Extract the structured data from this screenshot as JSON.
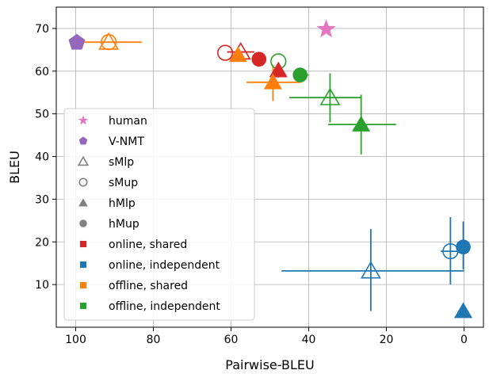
{
  "chart_data": {
    "type": "scatter",
    "xlabel": "Pairwise-BLEU",
    "ylabel": "BLEU",
    "x_reversed": true,
    "xlim": [
      105,
      -5
    ],
    "ylim": [
      0,
      75
    ],
    "xticks": [
      100,
      80,
      60,
      40,
      20,
      0
    ],
    "yticks": [
      10,
      20,
      30,
      40,
      50,
      60,
      70
    ],
    "grid": true,
    "legend_position": "lower-left",
    "colors": {
      "human": "#e377c2",
      "vnmt": "#9467bd",
      "online_shared": "#d62728",
      "online_independent": "#1f77b4",
      "offline_shared": "#ff7f0e",
      "offline_independent": "#2ca02c",
      "marker_key": "#808080"
    },
    "legend": [
      {
        "label": "human",
        "marker": "star",
        "color": "#e377c2"
      },
      {
        "label": "V-NMT",
        "marker": "pentagon",
        "color": "#9467bd"
      },
      {
        "label": "sMlp",
        "marker": "triangle-open",
        "color": "#808080"
      },
      {
        "label": "sMup",
        "marker": "circle-open",
        "color": "#808080"
      },
      {
        "label": "hMlp",
        "marker": "triangle",
        "color": "#808080"
      },
      {
        "label": "hMup",
        "marker": "circle",
        "color": "#808080"
      },
      {
        "label": "online, shared",
        "marker": "square",
        "color": "#d62728"
      },
      {
        "label": "online, independent",
        "marker": "square",
        "color": "#1f77b4"
      },
      {
        "label": "offline, shared",
        "marker": "square",
        "color": "#ff7f0e"
      },
      {
        "label": "offline, independent",
        "marker": "square",
        "color": "#2ca02c"
      }
    ],
    "points": [
      {
        "group": "human",
        "marker": "star",
        "color": "#e377c2",
        "x": 35.5,
        "y": 69.8
      },
      {
        "group": "V-NMT",
        "marker": "pentagon",
        "color": "#9467bd",
        "x": 99.7,
        "y": 66.7
      },
      {
        "group": "offline, shared",
        "marker": "triangle-open",
        "color": "#ff7f0e",
        "x": 91.5,
        "y": 66.8,
        "xerr": [
          83,
          99
        ]
      },
      {
        "group": "offline, shared",
        "marker": "circle-open",
        "color": "#ff7f0e",
        "x": 91.5,
        "y": 66.8
      },
      {
        "group": "online, shared",
        "marker": "circle-open",
        "color": "#d62728",
        "x": 61.5,
        "y": 64.3
      },
      {
        "group": "online, shared",
        "marker": "triangle-open",
        "color": "#d62728",
        "x": 57.5,
        "y": 64.5,
        "xerr": [
          54,
          61
        ]
      },
      {
        "group": "offline, shared",
        "marker": "triangle",
        "color": "#ff7f0e",
        "x": 58.2,
        "y": 63.8
      },
      {
        "group": "online, shared",
        "marker": "circle",
        "color": "#d62728",
        "x": 52.8,
        "y": 62.8
      },
      {
        "group": "offline, independent",
        "marker": "circle-open",
        "color": "#2ca02c",
        "x": 47.8,
        "y": 62.3
      },
      {
        "group": "online, shared",
        "marker": "triangle",
        "color": "#d62728",
        "x": 47.8,
        "y": 60.2,
        "yerr": [
          58.5,
          62
        ]
      },
      {
        "group": "offline, independent",
        "marker": "circle",
        "color": "#2ca02c",
        "x": 42.2,
        "y": 59.1,
        "xerr": [
          40,
          44
        ]
      },
      {
        "group": "offline, shared",
        "marker": "triangle",
        "color": "#ff7f0e",
        "x": 49.2,
        "y": 57.4,
        "xerr": [
          56,
          42
        ],
        "yerr": [
          53,
          61.5
        ]
      },
      {
        "group": "offline, independent",
        "marker": "triangle-open",
        "color": "#2ca02c",
        "x": 34.5,
        "y": 53.8,
        "xerr": [
          45,
          26.5
        ],
        "yerr": [
          48,
          59.5
        ]
      },
      {
        "group": "offline, independent",
        "marker": "triangle",
        "color": "#2ca02c",
        "x": 26.5,
        "y": 47.5,
        "xerr": [
          35,
          17.5
        ],
        "yerr": [
          40.5,
          54.5
        ]
      },
      {
        "group": "online, independent",
        "marker": "triangle-open",
        "color": "#1f77b4",
        "x": 24,
        "y": 13.2,
        "xerr": [
          47,
          0
        ],
        "yerr": [
          3.8,
          23
        ]
      },
      {
        "group": "online, independent",
        "marker": "circle-open",
        "color": "#1f77b4",
        "x": 3.5,
        "y": 17.8,
        "xerr": [
          6,
          1
        ],
        "yerr": [
          10,
          25.8
        ]
      },
      {
        "group": "online, independent",
        "marker": "circle",
        "color": "#1f77b4",
        "x": 0.2,
        "y": 18.8,
        "yerr": [
          13.5,
          24.8
        ]
      },
      {
        "group": "online, independent",
        "marker": "triangle",
        "color": "#1f77b4",
        "x": 0.2,
        "y": 3.8
      }
    ]
  }
}
